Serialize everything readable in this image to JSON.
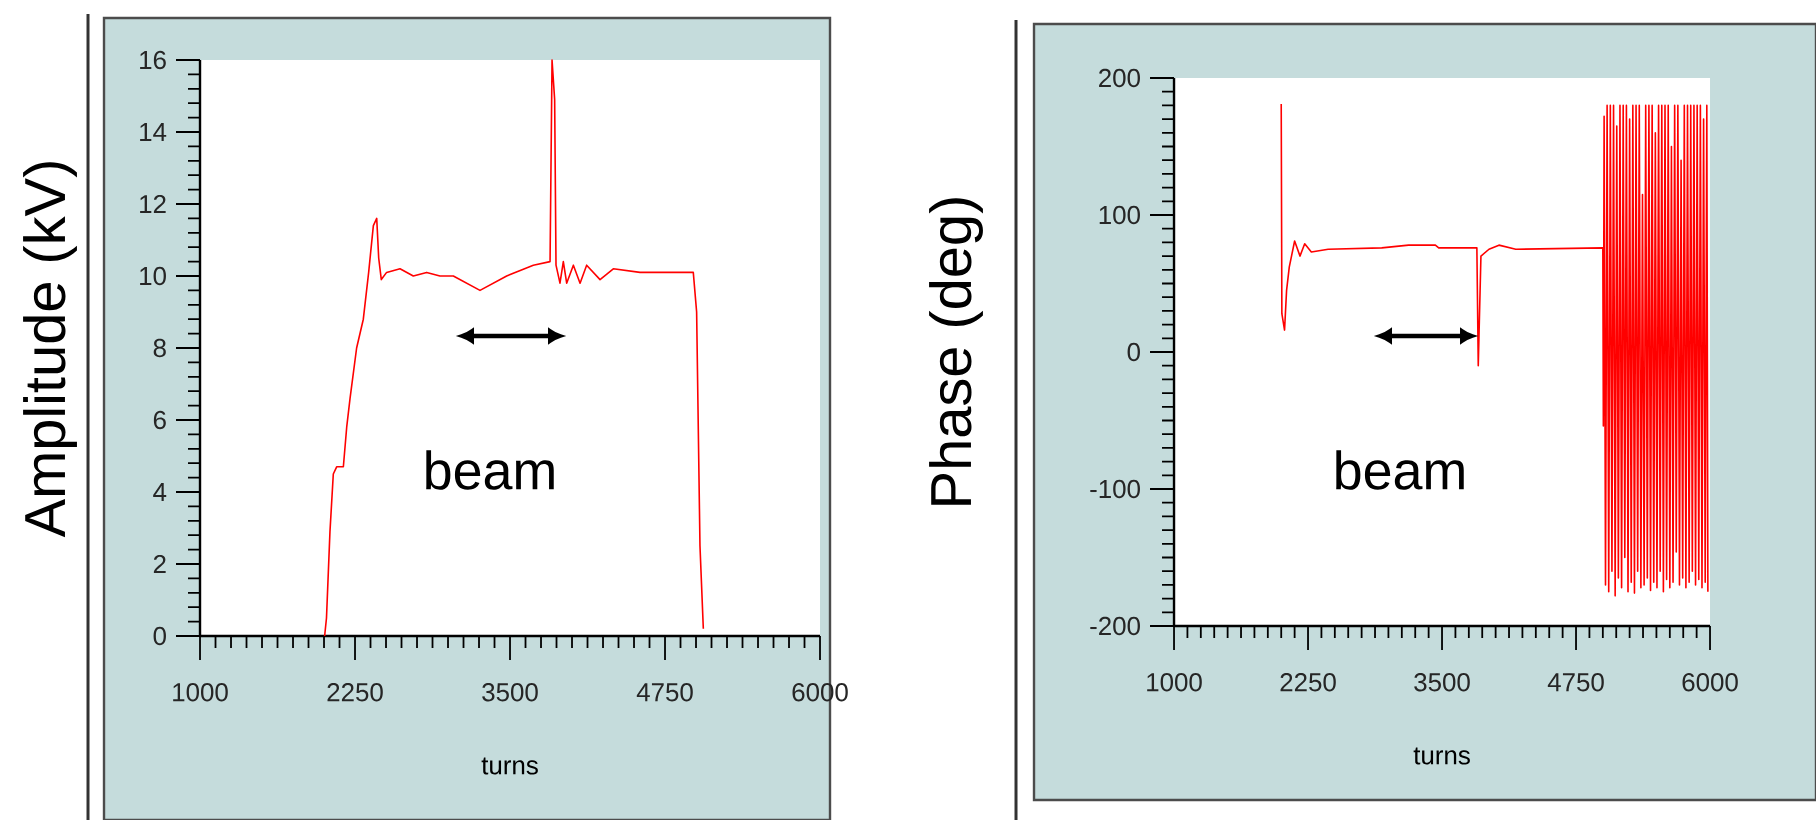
{
  "chart_data": [
    {
      "type": "line",
      "xlabel": "turns",
      "ylabel": "Amplitude (kV)",
      "annotations": [
        "beam"
      ],
      "xlim": [
        1000,
        6000
      ],
      "ylim": [
        0,
        16
      ],
      "xticks": [
        1000,
        2250,
        3500,
        4750,
        6000
      ],
      "yticks": [
        0,
        2,
        4,
        6,
        8,
        10,
        12,
        14,
        16
      ],
      "series": [
        {
          "color": "#ff0000",
          "x": [
            2005,
            2020,
            2048,
            2075,
            2102,
            2156,
            2183,
            2210,
            2263,
            2317,
            2360,
            2398,
            2425,
            2441,
            2462,
            2505,
            2613,
            2720,
            2828,
            2935,
            3043,
            3258,
            3473,
            3688,
            3823,
            3839,
            3860,
            3871,
            3903,
            3930,
            3957,
            4011,
            4065,
            4118,
            4226,
            4333,
            4548,
            4763,
            4978,
            5005,
            5032,
            5059
          ],
          "values": [
            0,
            0.5,
            2.9,
            4.5,
            4.7,
            4.7,
            5.8,
            6.6,
            8.0,
            8.8,
            10.1,
            11.4,
            11.6,
            10.5,
            9.9,
            10.1,
            10.2,
            10.0,
            10.1,
            10.0,
            10.0,
            9.6,
            10.0,
            10.3,
            10.4,
            16,
            14.9,
            10.3,
            9.8,
            10.4,
            9.8,
            10.3,
            9.8,
            10.3,
            9.9,
            10.2,
            10.1,
            10.1,
            10.1,
            9.0,
            2.5,
            0.2
          ]
        }
      ]
    },
    {
      "type": "line",
      "xlabel": "turns",
      "ylabel": "Phase (deg)",
      "annotations": [
        "beam"
      ],
      "xlim": [
        1000,
        6000
      ],
      "ylim": [
        -200,
        200
      ],
      "xticks": [
        1000,
        2250,
        3500,
        4750,
        6000
      ],
      "yticks": [
        -200,
        -100,
        0,
        100,
        200
      ],
      "series": [
        {
          "color": "#ff0000",
          "x": [
            2000,
            2006,
            2031,
            2050,
            2075,
            2125,
            2175,
            2219,
            2281,
            2438,
            2938,
            3188,
            3438,
            3469,
            3825,
            3838,
            3863,
            3938,
            4031,
            4188,
            5000,
            5005,
            5012,
            5025,
            5040,
            5055,
            5070,
            5085,
            5100,
            5115,
            5130,
            5145,
            5160,
            5175,
            5190,
            5205,
            5220,
            5235,
            5250,
            5265,
            5280,
            5295,
            5310,
            5325,
            5340,
            5355,
            5370,
            5385,
            5400,
            5415,
            5430,
            5445,
            5460,
            5475,
            5490,
            5505,
            5520,
            5535,
            5550,
            5565,
            5580,
            5595,
            5610,
            5625,
            5640,
            5655,
            5670,
            5685,
            5700,
            5715,
            5730,
            5745,
            5760,
            5775,
            5790,
            5805,
            5820,
            5835,
            5850,
            5865,
            5880,
            5895,
            5910,
            5925,
            5940,
            5955,
            5970,
            5980
          ],
          "values": [
            181,
            28,
            16,
            45,
            62,
            81,
            70,
            79,
            73,
            75,
            76,
            78,
            78,
            76,
            76,
            -10,
            70,
            75,
            78,
            75,
            76,
            -54,
            172,
            -170,
            180,
            -175,
            180,
            -160,
            180,
            -178,
            165,
            -165,
            180,
            -172,
            180,
            -150,
            180,
            -175,
            170,
            -168,
            180,
            -176,
            180,
            -160,
            180,
            -172,
            115,
            -170,
            180,
            -165,
            180,
            -174,
            180,
            -168,
            160,
            -172,
            180,
            -160,
            180,
            -175,
            180,
            -166,
            180,
            -172,
            150,
            -168,
            180,
            -146,
            180,
            -170,
            140,
            -165,
            180,
            -172,
            180,
            -168,
            180,
            -160,
            180,
            -170,
            180,
            -166,
            180,
            -172,
            170,
            -168,
            180,
            -175
          ]
        }
      ]
    }
  ]
}
